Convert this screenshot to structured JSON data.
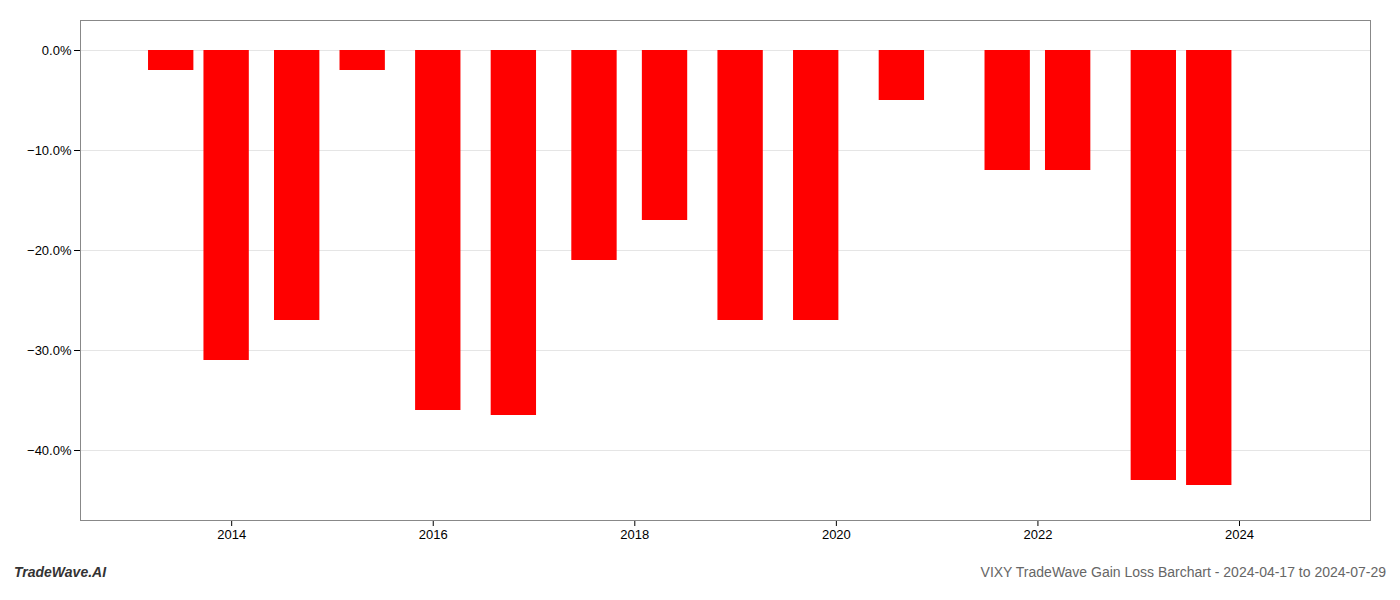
{
  "chart_data": {
    "type": "bar",
    "x": [
      2013.4,
      2013.95,
      2014.65,
      2015.3,
      2016.05,
      2016.8,
      2017.6,
      2018.3,
      2019.05,
      2019.8,
      2020.65,
      2021.7,
      2022.3,
      2023.15,
      2023.7
    ],
    "values": [
      -2.0,
      -31.0,
      -27.0,
      -2.0,
      -36.0,
      -36.5,
      -21.0,
      -17.0,
      -27.0,
      -27.0,
      -5.0,
      -12.0,
      -12.0,
      -43.0,
      -43.5
    ],
    "color": "#ff0000",
    "xlim": [
      2012.5,
      2025.3
    ],
    "xticks": [
      2014,
      2016,
      2018,
      2020,
      2022,
      2024
    ],
    "ylim": [
      -47,
      3
    ],
    "yticks": [
      {
        "value": 0,
        "label": "0.0%"
      },
      {
        "value": -10,
        "label": "−10.0%"
      },
      {
        "value": -20,
        "label": "−20.0%"
      },
      {
        "value": -30,
        "label": "−30.0%"
      },
      {
        "value": -40,
        "label": "−40.0%"
      }
    ],
    "grid": true,
    "annotations": [
      "TradeWave.AI",
      "VIXY TradeWave Gain Loss Barchart - 2024-04-17 to 2024-07-29"
    ]
  }
}
